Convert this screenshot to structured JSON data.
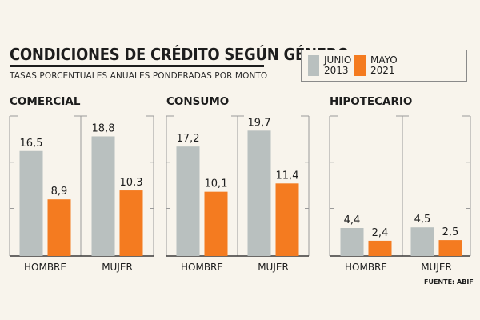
{
  "header": {
    "title": "CONDICIONES DE CRÉDITO SEGÚN GÉNERO",
    "subtitle": "TASAS PORCENTUALES ANUALES PONDERADAS POR MONTO"
  },
  "legend": [
    {
      "line1": "JUNIO",
      "line2": "2013",
      "color": "#b9c0bf"
    },
    {
      "line1": "MAYO",
      "line2": "2021",
      "color": "#f47b20"
    }
  ],
  "source": "FUENTE: ABIF",
  "chart_data": [
    {
      "type": "bar",
      "title": "COMERCIAL",
      "categories": [
        "HOMBRE",
        "MUJER"
      ],
      "series": [
        {
          "name": "JUNIO 2013",
          "values": [
            16.5,
            18.8
          ]
        },
        {
          "name": "MAYO 2021",
          "values": [
            8.9,
            10.3
          ]
        }
      ],
      "value_labels": [
        [
          "16,5",
          "18,8"
        ],
        [
          "8,9",
          "10,3"
        ]
      ],
      "ylim": [
        0,
        22
      ]
    },
    {
      "type": "bar",
      "title": "CONSUMO",
      "categories": [
        "HOMBRE",
        "MUJER"
      ],
      "series": [
        {
          "name": "JUNIO 2013",
          "values": [
            17.2,
            19.7
          ]
        },
        {
          "name": "MAYO 2021",
          "values": [
            10.1,
            11.4
          ]
        }
      ],
      "value_labels": [
        [
          "17,2",
          "19,7"
        ],
        [
          "10,1",
          "11,4"
        ]
      ],
      "ylim": [
        0,
        22
      ]
    },
    {
      "type": "bar",
      "title": "HIPOTECARIO",
      "categories": [
        "HOMBRE",
        "MUJER"
      ],
      "series": [
        {
          "name": "JUNIO 2013",
          "values": [
            4.4,
            4.5
          ]
        },
        {
          "name": "MAYO 2021",
          "values": [
            2.4,
            2.5
          ]
        }
      ],
      "value_labels": [
        [
          "4,4",
          "4,5"
        ],
        [
          "2,4",
          "2,5"
        ]
      ],
      "ylim": [
        0,
        22
      ]
    }
  ]
}
